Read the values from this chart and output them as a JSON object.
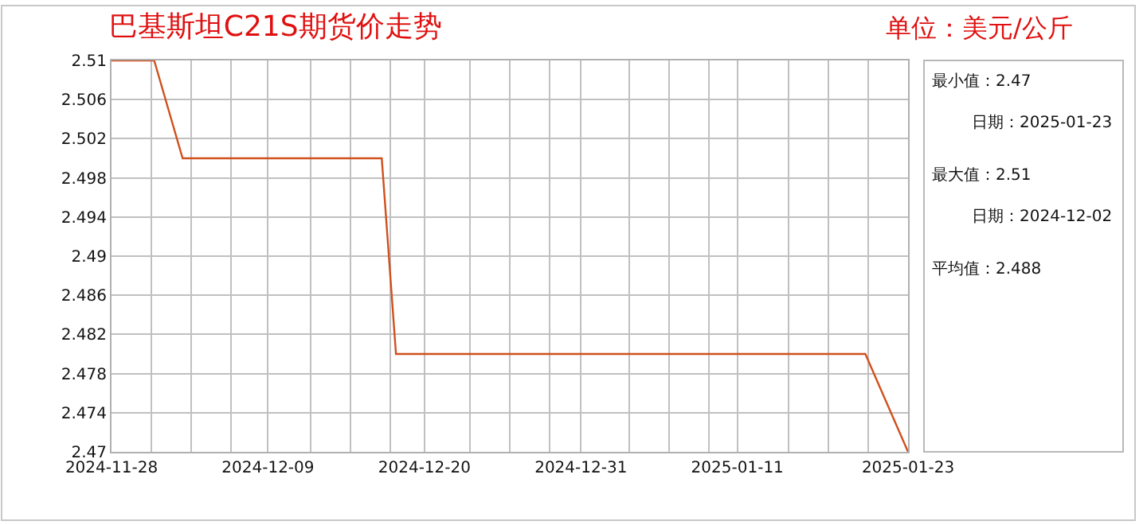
{
  "chart_data": {
    "type": "line",
    "title": "巴基斯坦C21S期货价走势",
    "subtitle": "单位：美元/公斤",
    "x": [
      "2024-11-28",
      "2024-12-01",
      "2024-12-03",
      "2024-12-17",
      "2024-12-18",
      "2025-01-20",
      "2025-01-23"
    ],
    "series": [
      {
        "color": "#d0501c",
        "values": [
          2.51,
          2.51,
          2.5,
          2.5,
          2.48,
          2.48,
          2.47
        ]
      }
    ],
    "xlim": [
      "2024-11-28",
      "2025-01-23"
    ],
    "xticks": [
      {
        "value": "2024-11-28",
        "label": "2024-11-28"
      },
      {
        "value": "2024-11-30T19:12",
        "label": null
      },
      {
        "value": "2024-12-03T14:24",
        "label": null
      },
      {
        "value": "2024-12-06T09:36",
        "label": null
      },
      {
        "value": "2024-12-09",
        "label": "2024-12-09"
      },
      {
        "value": "2024-12-12",
        "label": null
      },
      {
        "value": "2024-12-14T19:12",
        "label": null
      },
      {
        "value": "2024-12-17T14:24",
        "label": null
      },
      {
        "value": "2024-12-20",
        "label": "2024-12-20"
      },
      {
        "value": "2024-12-23T04:48",
        "label": null
      },
      {
        "value": "2024-12-26",
        "label": null
      },
      {
        "value": "2024-12-28T19:12",
        "label": null
      },
      {
        "value": "2024-12-31",
        "label": "2024-12-31"
      },
      {
        "value": "2025-01-03T09:36",
        "label": null
      },
      {
        "value": "2025-01-06T04:48",
        "label": null
      },
      {
        "value": "2025-01-09",
        "label": null
      },
      {
        "value": "2025-01-11",
        "label": "2025-01-11"
      },
      {
        "value": "2025-01-14T14:24",
        "label": null
      },
      {
        "value": "2025-01-17T09:36",
        "label": null
      },
      {
        "value": "2025-01-20T04:48",
        "label": null
      },
      {
        "value": "2025-01-23",
        "label": "2025-01-23"
      }
    ],
    "ylim": [
      2.47,
      2.51
    ],
    "yticks": [
      2.47,
      2.474,
      2.478,
      2.482,
      2.486,
      2.49,
      2.494,
      2.498,
      2.502,
      2.506,
      2.51
    ],
    "grid": true,
    "marker": "none",
    "line_style": "solid",
    "annotations": [
      "最小值：2.47",
      "日期：2025-01-23",
      "最大值：2.51",
      "日期：2024-12-02",
      "平均值：2.488"
    ]
  }
}
